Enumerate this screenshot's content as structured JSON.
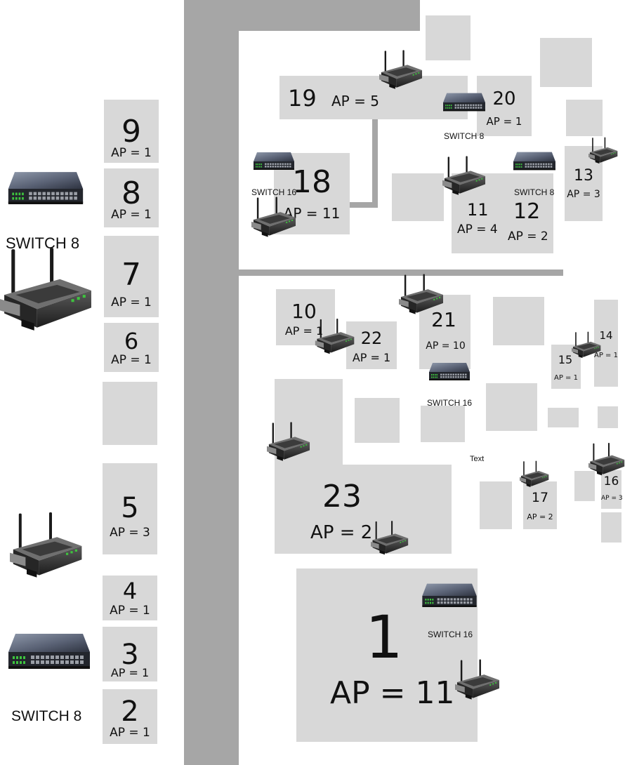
{
  "rooms": {
    "r9": {
      "number": "9",
      "ap": "AP = 1"
    },
    "r8": {
      "number": "8",
      "ap": "AP = 1"
    },
    "r7": {
      "number": "7",
      "ap": "AP = 1"
    },
    "r6": {
      "number": "6",
      "ap": "AP = 1"
    },
    "r5": {
      "number": "5",
      "ap": "AP = 3"
    },
    "r4": {
      "number": "4",
      "ap": "AP = 1"
    },
    "r3": {
      "number": "3",
      "ap": "AP = 1"
    },
    "r2": {
      "number": "2",
      "ap": "AP = 1"
    },
    "r19": {
      "number": "19",
      "ap": "AP = 5"
    },
    "r20": {
      "number": "20",
      "ap": "AP = 1"
    },
    "r18": {
      "number": "18",
      "ap": "AP = 11"
    },
    "r11": {
      "number": "11",
      "ap": "AP = 4"
    },
    "r12": {
      "number": "12",
      "ap": "AP = 2"
    },
    "r13": {
      "number": "13",
      "ap": "AP = 3"
    },
    "r10": {
      "number": "10",
      "ap": "AP = 1"
    },
    "r22": {
      "number": "22",
      "ap": "AP = 1"
    },
    "r21": {
      "number": "21",
      "ap": "AP = 10"
    },
    "r14": {
      "number": "14",
      "ap": "AP = 1"
    },
    "r15": {
      "number": "15",
      "ap": "AP = 1"
    },
    "r23": {
      "number": "23",
      "ap": "AP = 2"
    },
    "r17": {
      "number": "17",
      "ap": "AP = 2"
    },
    "r16": {
      "number": "16",
      "ap": "AP = 3"
    },
    "r1": {
      "number": "1",
      "ap": "AP = 11"
    }
  },
  "switch_labels": {
    "left_top": "SWITCH 8",
    "left_bottom": "SWITCH 8",
    "room20": "SWITCH 8",
    "room18": "SWITCH 16",
    "room12": "SWITCH 8",
    "room21": "SWITCH 16",
    "room1": "SWITCH 16"
  },
  "free_text": "Text",
  "icons": {
    "switch": "network-switch-icon",
    "router": "wireless-router-icon"
  },
  "colors": {
    "room": "#d8d8d8",
    "wall": "#a6a6a6",
    "background": "#ffffff",
    "port_led": "#3ec43e"
  }
}
